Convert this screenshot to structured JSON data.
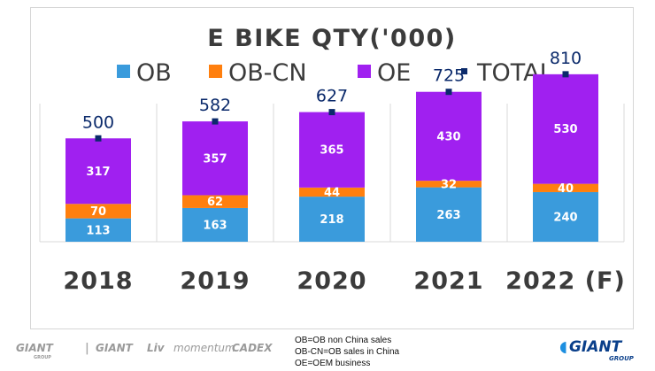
{
  "chart_data": {
    "type": "bar",
    "stacked": true,
    "title": "E BIKE QTY('000)",
    "categories": [
      "2018",
      "2019",
      "2020",
      "2021",
      "2022 (F)"
    ],
    "series": [
      {
        "name": "OB",
        "color": "#3a9bdc",
        "values": [
          113,
          163,
          218,
          263,
          240
        ]
      },
      {
        "name": "OB-CN",
        "color": "#ff7f0e",
        "values": [
          70,
          62,
          44,
          32,
          40
        ]
      },
      {
        "name": "OE",
        "color": "#a020f0",
        "values": [
          317,
          357,
          365,
          430,
          530
        ]
      }
    ],
    "total": {
      "name": "TOTAL",
      "color": "#0b2a6b",
      "values": [
        500,
        582,
        627,
        725,
        810
      ]
    },
    "ylim": [
      0,
      900
    ],
    "legend_position": "top"
  },
  "footer": {
    "logos": [
      {
        "name": "GIANT",
        "sub": "GROUP"
      },
      {
        "name": "GIANT"
      },
      {
        "name": "Liv"
      },
      {
        "name": "momentum"
      },
      {
        "name": "CADEX"
      }
    ],
    "notes": [
      "OB=OB non China sales",
      "OB-CN=OB sales in China",
      "OE=OEM business"
    ],
    "brand": {
      "name": "GIANT",
      "sub": "GROUP"
    }
  }
}
